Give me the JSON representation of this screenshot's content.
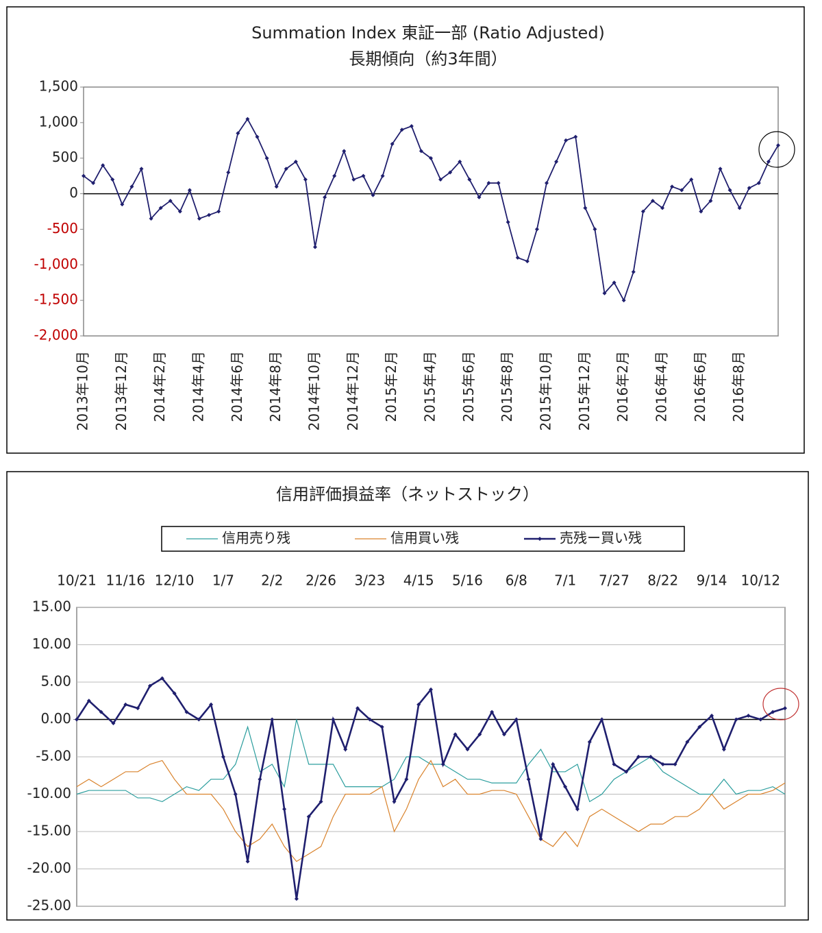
{
  "chart_data": [
    {
      "type": "line",
      "title": "Summation Index 東証一部 (Ratio Adjusted)",
      "subtitle": "長期傾向（約3年間）",
      "categories": [
        "2013年10月",
        null,
        null,
        null,
        "2013年12月",
        null,
        null,
        null,
        "2014年2月",
        null,
        null,
        null,
        "2014年4月",
        null,
        null,
        null,
        "2014年6月",
        null,
        null,
        null,
        "2014年8月",
        null,
        null,
        null,
        "2014年10月",
        null,
        null,
        null,
        "2014年12月",
        null,
        null,
        null,
        "2015年2月",
        null,
        null,
        null,
        "2015年4月",
        null,
        null,
        null,
        "2015年6月",
        null,
        null,
        null,
        "2015年8月",
        null,
        null,
        null,
        "2015年10月",
        null,
        null,
        null,
        "2015年12月",
        null,
        null,
        null,
        "2016年2月",
        null,
        null,
        null,
        "2016年4月",
        null,
        null,
        null,
        "2016年6月",
        null,
        null,
        null,
        "2016年8月",
        null,
        null,
        null,
        null
      ],
      "values": [
        250,
        150,
        400,
        200,
        -150,
        100,
        350,
        -350,
        -200,
        -100,
        -250,
        50,
        -350,
        -300,
        -250,
        300,
        850,
        1050,
        800,
        500,
        100,
        350,
        450,
        200,
        -750,
        -50,
        250,
        600,
        200,
        250,
        -20,
        250,
        700,
        900,
        950,
        600,
        500,
        200,
        300,
        450,
        200,
        -50,
        150,
        150,
        -400,
        -900,
        -950,
        -500,
        150,
        450,
        750,
        800,
        -200,
        -500,
        -1400,
        -1250,
        -1500,
        -1100,
        -250,
        -100,
        -200,
        100,
        50,
        200,
        -250,
        -100,
        350,
        50,
        -200,
        80,
        150,
        450,
        680
      ],
      "color": "#1f1f6e",
      "markers": true,
      "ylim": [
        -2000,
        1500
      ],
      "yticks": [
        {
          "value": -2000,
          "label": "-2,000"
        },
        {
          "value": -1500,
          "label": "-1,500"
        },
        {
          "value": -1000,
          "label": "-1,000"
        },
        -500,
        0,
        500,
        {
          "value": 1000,
          "label": "1,000"
        },
        {
          "value": 1500,
          "label": "1,500"
        }
      ],
      "negative_tick_color": "#c00000",
      "grid": false
    },
    {
      "type": "line",
      "title": "信用評価損益率（ネットストック）",
      "categories": [
        "10/21",
        null,
        null,
        null,
        "11/16",
        null,
        null,
        null,
        "12/10",
        null,
        null,
        null,
        "1/7",
        null,
        null,
        null,
        "2/2",
        null,
        null,
        null,
        "2/26",
        null,
        null,
        null,
        "3/23",
        null,
        null,
        null,
        "4/15",
        null,
        null,
        null,
        "5/16",
        null,
        null,
        null,
        "6/8",
        null,
        null,
        null,
        "7/1",
        null,
        null,
        null,
        "7/27",
        null,
        null,
        null,
        "8/22",
        null,
        null,
        null,
        "9/14",
        null,
        null,
        null,
        "10/12",
        null,
        null
      ],
      "series": [
        {
          "name": "信用売り残",
          "color": "#2a9d9d",
          "markers": false,
          "values": [
            -10,
            -9.5,
            -9.5,
            -9.5,
            -9.5,
            -10.5,
            -10.5,
            -11,
            -10,
            -9,
            -9.5,
            -8,
            -8,
            -6,
            -1,
            -7,
            -6,
            -9,
            0,
            -6,
            -6,
            -6,
            -9,
            -9,
            -9,
            -9,
            -8,
            -5,
            -5,
            -6,
            -6,
            -7,
            -8,
            -8,
            -8.5,
            -8.5,
            -8.5,
            -6,
            -4,
            -7,
            -7,
            -6,
            -11,
            -10,
            -8,
            -7,
            -6,
            -5,
            -7,
            -8,
            -9,
            -10,
            -10,
            -8,
            -10,
            -9.5,
            -9.5,
            -9,
            -10
          ]
        },
        {
          "name": "信用買い残",
          "color": "#d9822b",
          "markers": false,
          "values": [
            -9,
            -8,
            -9,
            -8,
            -7,
            -7,
            -6,
            -5.5,
            -8,
            -10,
            -10,
            -10,
            -12,
            -15,
            -17,
            -16,
            -14,
            -17,
            -19,
            -18,
            -17,
            -13,
            -10,
            -10,
            -10,
            -9,
            -15,
            -12,
            -8,
            -5.5,
            -9,
            -8,
            -10,
            -10,
            -9.5,
            -9.5,
            -10,
            -13,
            -16,
            -17,
            -15,
            -17,
            -13,
            -12,
            -13,
            -14,
            -15,
            -14,
            -14,
            -13,
            -13,
            -12,
            -10,
            -12,
            -11,
            -10,
            -10,
            -9.5,
            -8.5
          ]
        },
        {
          "name": "売残ー買い残",
          "color": "#1f1f6e",
          "markers": true,
          "values": [
            0,
            2.5,
            1,
            -0.5,
            2,
            1.5,
            4.5,
            5.5,
            3.5,
            1,
            0,
            2,
            -5,
            -10,
            -19,
            -8,
            0,
            -12,
            -24,
            -13,
            -11,
            0,
            -4,
            1.5,
            0,
            -1,
            -11,
            -8,
            2,
            4,
            -6,
            -2,
            -4,
            -2,
            1,
            -2,
            0,
            -8,
            -16,
            -6,
            -9,
            -12,
            -3,
            0,
            -6,
            -7,
            -5,
            -5,
            -6,
            -6,
            -3,
            -1,
            0.5,
            -4,
            0,
            0.5,
            0,
            1,
            1.5
          ]
        }
      ],
      "ylim": [
        -25,
        15
      ],
      "yticks": [
        {
          "value": -25,
          "label": "-25.00"
        },
        {
          "value": -20,
          "label": "-20.00"
        },
        {
          "value": -15,
          "label": "-15.00"
        },
        {
          "value": -10,
          "label": "-10.00"
        },
        {
          "value": -5,
          "label": "-5.00"
        },
        {
          "value": 0,
          "label": "0.00"
        },
        {
          "value": 5,
          "label": "5.00"
        },
        {
          "value": 10,
          "label": "10.00"
        },
        {
          "value": 15,
          "label": "15.00"
        }
      ],
      "grid": true
    }
  ]
}
